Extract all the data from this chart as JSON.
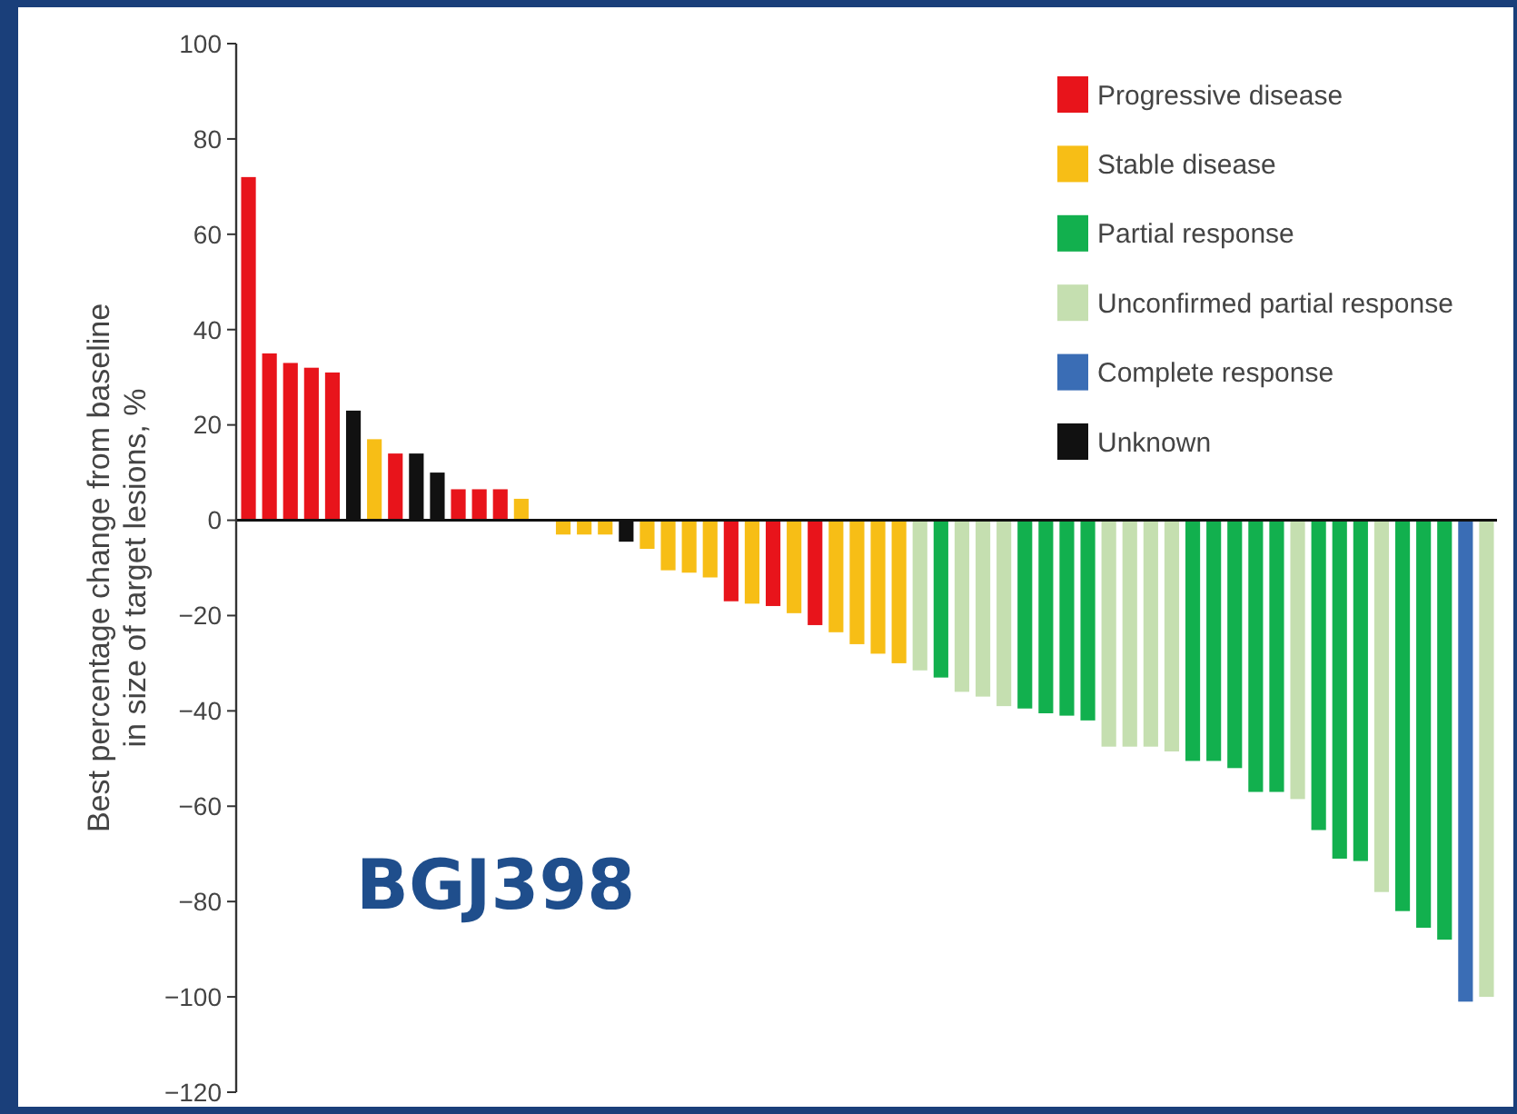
{
  "chart_data": {
    "type": "bar",
    "ylabel": "Best percentage change from baseline\nin size of target lesions, %",
    "categories": [
      null,
      null,
      null,
      null,
      null,
      null,
      null,
      null,
      null,
      null,
      null,
      null,
      null,
      null,
      null,
      null,
      null,
      null,
      null,
      null,
      null,
      null,
      null,
      null,
      null,
      null,
      null,
      null,
      null,
      null,
      null,
      null,
      null,
      null,
      null,
      null,
      null,
      null,
      null,
      null,
      null,
      null,
      null,
      null,
      null,
      null,
      null,
      null,
      null,
      null,
      null,
      null,
      null,
      null,
      null,
      null,
      null,
      null,
      null,
      null
    ],
    "series": [
      {
        "name": "Progressive disease",
        "color": "#e8141b",
        "values": [
          72,
          35,
          33,
          32,
          31,
          null,
          null,
          14,
          null,
          null,
          6.5,
          6.5,
          6.5,
          null,
          null,
          null,
          null,
          null,
          null,
          null,
          null,
          null,
          null,
          -17,
          null,
          -18,
          null,
          -22,
          null,
          null,
          null,
          null,
          null,
          null,
          null,
          null,
          null,
          null,
          null,
          null,
          null,
          null,
          null,
          null,
          null,
          null,
          null,
          null,
          null,
          null,
          null,
          null,
          null,
          null,
          null,
          null,
          null,
          null,
          null,
          null
        ]
      },
      {
        "name": "Stable disease",
        "color": "#f7be16",
        "values": [
          null,
          null,
          null,
          null,
          null,
          null,
          17,
          null,
          null,
          null,
          null,
          null,
          null,
          4.5,
          null,
          -3,
          -3,
          -3,
          null,
          -6,
          -10.5,
          -11,
          -12,
          null,
          -17.5,
          null,
          -19.5,
          null,
          -23.5,
          -26,
          -28,
          -30,
          null,
          null,
          null,
          null,
          null,
          null,
          null,
          null,
          null,
          null,
          null,
          null,
          null,
          null,
          null,
          null,
          null,
          null,
          null,
          null,
          null,
          null,
          null,
          null,
          null,
          null,
          null,
          null
        ]
      },
      {
        "name": "Partial response",
        "color": "#12b04e",
        "values": [
          null,
          null,
          null,
          null,
          null,
          null,
          null,
          null,
          null,
          null,
          null,
          null,
          null,
          null,
          null,
          null,
          null,
          null,
          null,
          null,
          null,
          null,
          null,
          null,
          null,
          null,
          null,
          null,
          null,
          null,
          null,
          null,
          null,
          -33,
          null,
          null,
          null,
          -39.5,
          -40.5,
          -41,
          -42,
          null,
          null,
          null,
          null,
          -50.5,
          -50.5,
          -52,
          -57,
          -57,
          null,
          -65,
          -71,
          -71.5,
          null,
          -82,
          -85.5,
          -88,
          null,
          null
        ]
      },
      {
        "name": "Unconfirmed partial response",
        "color": "#c5dfb0",
        "values": [
          null,
          null,
          null,
          null,
          null,
          null,
          null,
          null,
          null,
          null,
          null,
          null,
          null,
          null,
          null,
          null,
          null,
          null,
          null,
          null,
          null,
          null,
          null,
          null,
          null,
          null,
          null,
          null,
          null,
          null,
          null,
          null,
          -31.5,
          null,
          -36,
          -37,
          -39,
          null,
          null,
          null,
          null,
          -47.5,
          -47.5,
          -47.5,
          -48.5,
          null,
          null,
          null,
          null,
          null,
          -58.5,
          null,
          null,
          null,
          -78,
          null,
          null,
          null,
          null,
          -100
        ]
      },
      {
        "name": "Complete response",
        "color": "#3a6db5",
        "values": [
          null,
          null,
          null,
          null,
          null,
          null,
          null,
          null,
          null,
          null,
          null,
          null,
          null,
          null,
          null,
          null,
          null,
          null,
          null,
          null,
          null,
          null,
          null,
          null,
          null,
          null,
          null,
          null,
          null,
          null,
          null,
          null,
          null,
          null,
          null,
          null,
          null,
          null,
          null,
          null,
          null,
          null,
          null,
          null,
          null,
          null,
          null,
          null,
          null,
          null,
          null,
          null,
          null,
          null,
          null,
          null,
          null,
          null,
          -101,
          null
        ]
      },
      {
        "name": "Unknown",
        "color": "#111111",
        "values": [
          null,
          null,
          null,
          null,
          null,
          23,
          null,
          null,
          14,
          10,
          null,
          null,
          null,
          null,
          null,
          null,
          null,
          null,
          -4.5,
          null,
          null,
          null,
          null,
          null,
          null,
          null,
          null,
          null,
          null,
          null,
          null,
          null,
          null,
          null,
          null,
          null,
          null,
          null,
          null,
          null,
          null,
          null,
          null,
          null,
          null,
          null,
          null,
          null,
          null,
          null,
          null,
          null,
          null,
          null,
          null,
          null,
          null,
          null,
          null,
          null
        ]
      }
    ],
    "ylim": [
      -120,
      100
    ],
    "yticks": [
      -120,
      -100,
      -80,
      -60,
      -40,
      -20,
      0,
      20,
      40,
      60,
      80,
      100
    ],
    "legend": "top right",
    "tick_labels": "y",
    "annotations": [
      "BGJ398"
    ]
  }
}
